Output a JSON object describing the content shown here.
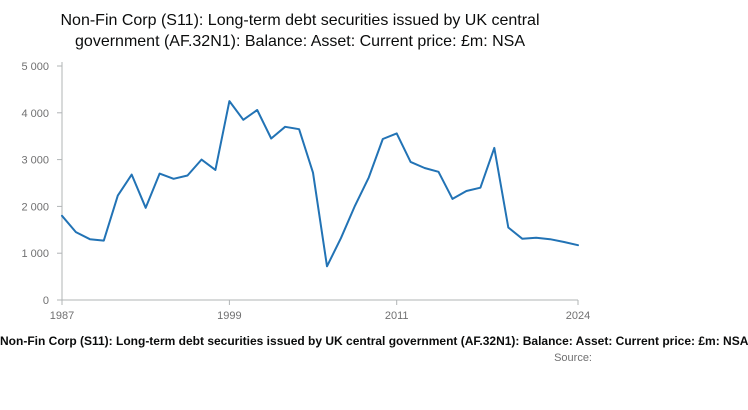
{
  "title": "Non-Fin Corp (S11): Long-term debt securities issued by UK central government (AF.32N1): Balance: Asset: Current price: £m: NSA",
  "caption": "Non-Fin Corp (S11): Long-term debt securities issued by UK central government (AF.32N1): Balance: Asset: Current price: £m: NSA",
  "source_label": "Source:",
  "colors": {
    "line": "#2273b5",
    "axis": "#b1b4b6",
    "tick_label": "#707071",
    "title": "#0b0c0c"
  },
  "chart_data": {
    "type": "line",
    "title": "Non-Fin Corp (S11): Long-term debt securities issued by UK central government (AF.32N1): Balance: Asset: Current price: £m: NSA",
    "xlabel": "",
    "ylabel": "",
    "xlim": [
      1987,
      2024
    ],
    "ylim": [
      0,
      5000
    ],
    "grid": false,
    "legend": "none",
    "x": [
      1987,
      1988,
      1989,
      1990,
      1991,
      1992,
      1993,
      1994,
      1995,
      1996,
      1997,
      1998,
      1999,
      2000,
      2001,
      2002,
      2003,
      2004,
      2005,
      2006,
      2007,
      2008,
      2009,
      2010,
      2011,
      2012,
      2013,
      2014,
      2015,
      2016,
      2017,
      2018,
      2019,
      2020,
      2021,
      2022,
      2023,
      2024
    ],
    "values": [
      1800,
      1450,
      1300,
      1270,
      2230,
      2680,
      1970,
      2700,
      2590,
      2660,
      3000,
      2780,
      4250,
      3850,
      4060,
      3450,
      3700,
      3650,
      2720,
      720,
      1320,
      2010,
      2620,
      3440,
      3560,
      2950,
      2820,
      2740,
      2160,
      2330,
      2400,
      3250,
      1550,
      1310,
      1330,
      1300,
      1240,
      1170
    ],
    "y_ticks": [
      {
        "value": 0,
        "label": "0"
      },
      {
        "value": 1000,
        "label": "1 000"
      },
      {
        "value": 2000,
        "label": "2 000"
      },
      {
        "value": 3000,
        "label": "3 000"
      },
      {
        "value": 4000,
        "label": "4 000"
      },
      {
        "value": 5000,
        "label": "5 000"
      }
    ],
    "x_ticks": [
      {
        "value": 1987,
        "label": "1987"
      },
      {
        "value": 1999,
        "label": "1999"
      },
      {
        "value": 2011,
        "label": "2011"
      },
      {
        "value": 2024,
        "label": "2024"
      }
    ]
  }
}
